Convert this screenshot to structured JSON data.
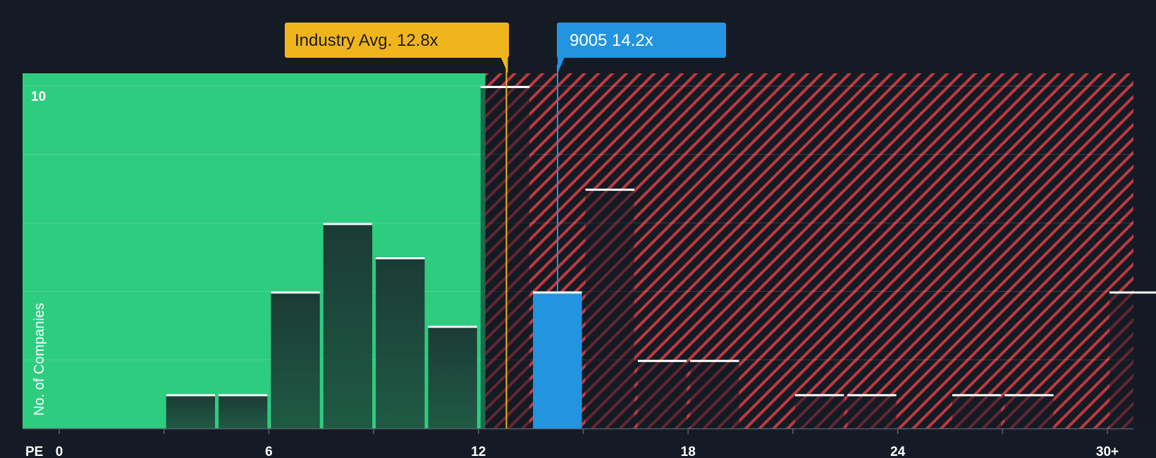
{
  "chart_data": {
    "type": "bar",
    "title": "",
    "xlabel": "PE",
    "ylabel": "No. of Companies",
    "xlim": [
      0,
      30
    ],
    "ylim": [
      0,
      10
    ],
    "bin_width": 1.5,
    "x_ticks": [
      {
        "value": 0,
        "label": "0"
      },
      {
        "value": 6,
        "label": "6"
      },
      {
        "value": 12,
        "label": "12"
      },
      {
        "value": 18,
        "label": "18"
      },
      {
        "value": 24,
        "label": "24"
      },
      {
        "value": 30,
        "label": "30+"
      }
    ],
    "y_ticks": [
      {
        "value": 10,
        "label": "10"
      }
    ],
    "bins": [
      {
        "start": 3.0,
        "count": 1
      },
      {
        "start": 4.5,
        "count": 1
      },
      {
        "start": 6.0,
        "count": 4
      },
      {
        "start": 7.5,
        "count": 6
      },
      {
        "start": 9.0,
        "count": 5
      },
      {
        "start": 10.5,
        "count": 3
      },
      {
        "start": 12.0,
        "count": 10
      },
      {
        "start": 13.5,
        "count": 4,
        "highlight": true
      },
      {
        "start": 15.0,
        "count": 7
      },
      {
        "start": 16.5,
        "count": 2
      },
      {
        "start": 18.0,
        "count": 2
      },
      {
        "start": 21.0,
        "count": 1
      },
      {
        "start": 22.5,
        "count": 1
      },
      {
        "start": 25.5,
        "count": 1
      },
      {
        "start": 27.0,
        "count": 1
      },
      {
        "start": 30.0,
        "count": 4
      }
    ],
    "fair_zone_end": 12.2,
    "industry_avg": {
      "value": 12.8,
      "label": "Industry Avg. 12.8x"
    },
    "company": {
      "ticker": "9005",
      "value": 14.2,
      "label": "9005 14.2x"
    }
  },
  "colors": {
    "background": "#151b24",
    "green_zone": "#2ecc7f",
    "red_hatch": "#c0393f",
    "bar_dark": "#1e4a3b",
    "bar_company": "#2394e0",
    "industry_callout": "#f0b51c",
    "company_callout": "#2394e0",
    "cap_line": "#ffffff"
  }
}
